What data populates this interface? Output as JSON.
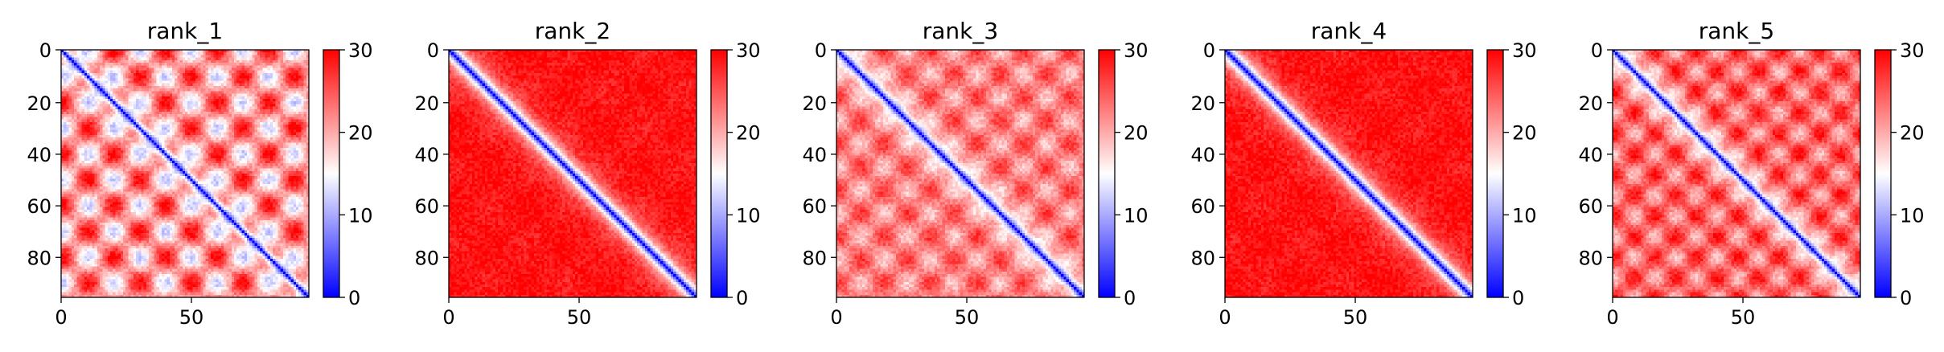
{
  "chart_data": [
    {
      "type": "heatmap",
      "title": "rank_1",
      "n": 96,
      "xticks": [
        0,
        50
      ],
      "yticks": [
        0,
        20,
        40,
        60,
        80
      ],
      "colorbar": {
        "ticks": [
          0,
          10,
          20,
          30
        ],
        "range": [
          0,
          30
        ],
        "colormap": "bwr"
      },
      "pattern": {
        "diag_band": 2.6,
        "background": 21,
        "checker_amp": 9,
        "checker_period": 20
      }
    },
    {
      "type": "heatmap",
      "title": "rank_2",
      "n": 96,
      "xticks": [
        0,
        50
      ],
      "yticks": [
        0,
        20,
        40,
        60,
        80
      ],
      "colorbar": {
        "ticks": [
          0,
          10,
          20,
          30
        ],
        "range": [
          0,
          30
        ],
        "colormap": "bwr"
      },
      "pattern": {
        "diag_band": 4.0,
        "background": 29,
        "checker_amp": 0.8,
        "checker_period": 30
      }
    },
    {
      "type": "heatmap",
      "title": "rank_3",
      "n": 96,
      "xticks": [
        0,
        50
      ],
      "yticks": [
        0,
        20,
        40,
        60,
        80
      ],
      "colorbar": {
        "ticks": [
          0,
          10,
          20,
          30
        ],
        "range": [
          0,
          30
        ],
        "colormap": "bwr"
      },
      "pattern": {
        "diag_band": 3.0,
        "background": 22.5,
        "checker_amp": 4.5,
        "checker_period": 18
      }
    },
    {
      "type": "heatmap",
      "title": "rank_4",
      "n": 96,
      "xticks": [
        0,
        50
      ],
      "yticks": [
        0,
        20,
        40,
        60,
        80
      ],
      "colorbar": {
        "ticks": [
          0,
          10,
          20,
          30
        ],
        "range": [
          0,
          30
        ],
        "colormap": "bwr"
      },
      "pattern": {
        "diag_band": 4.0,
        "background": 29,
        "checker_amp": 0.8,
        "checker_period": 30
      }
    },
    {
      "type": "heatmap",
      "title": "rank_5",
      "n": 96,
      "xticks": [
        0,
        50
      ],
      "yticks": [
        0,
        20,
        40,
        60,
        80
      ],
      "colorbar": {
        "ticks": [
          0,
          10,
          20,
          30
        ],
        "range": [
          0,
          30
        ],
        "colormap": "bwr"
      },
      "pattern": {
        "diag_band": 3.0,
        "background": 24,
        "checker_amp": 5.5,
        "checker_period": 16
      }
    }
  ]
}
